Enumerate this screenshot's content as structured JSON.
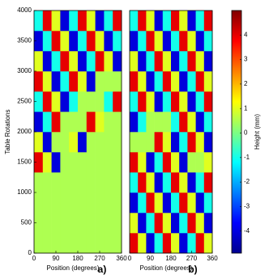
{
  "chart_data": {
    "type": "heatmap",
    "colormap": "jet",
    "ylabel": "Table Rotations",
    "xlim": [
      0,
      360
    ],
    "xticks": [
      0,
      90,
      180,
      270,
      360
    ],
    "ylim": [
      0,
      4000
    ],
    "yticks": [
      0,
      500,
      1000,
      1500,
      2000,
      2500,
      3000,
      3500,
      4000
    ],
    "panels": [
      {
        "label": "a)",
        "xlabel": "Position (degrees)",
        "z": [
          [
            0.5,
            0.5,
            0.5,
            0.5,
            0.5,
            0.5,
            0.5,
            0.5,
            0.5,
            0.5
          ],
          [
            0.5,
            0.5,
            0.5,
            0.5,
            0.5,
            0.5,
            0.5,
            0.5,
            0.5,
            0.5
          ],
          [
            0.5,
            0.5,
            0.5,
            0.5,
            0.5,
            0.5,
            0.5,
            0.5,
            0.5,
            0.5
          ],
          [
            0.5,
            0.5,
            0.5,
            0.5,
            0.5,
            0.5,
            0.5,
            0.5,
            0.5,
            0.5
          ],
          [
            4,
            1,
            -4,
            0.5,
            0.5,
            0.5,
            0.5,
            0.5,
            0.5,
            0.5
          ],
          [
            1,
            -4,
            0.5,
            0.5,
            1,
            -4,
            0.5,
            0.5,
            0.5,
            0.5
          ],
          [
            -4,
            -1,
            4,
            0.5,
            0.5,
            0.5,
            4,
            1,
            0.5,
            0.5
          ],
          [
            -1,
            4,
            1,
            -4,
            -1,
            0.5,
            0.5,
            0.5,
            -1,
            4
          ],
          [
            4,
            1,
            -4,
            -1,
            4,
            1,
            -4,
            0.5,
            0.5,
            0.5
          ],
          [
            1,
            -4,
            -1,
            4,
            1,
            -4,
            -1,
            4,
            1,
            -4
          ],
          [
            -4,
            -1,
            4,
            1,
            -4,
            -1,
            4,
            1,
            -4,
            -1
          ],
          [
            -1,
            4,
            1,
            -4,
            -1,
            4,
            1,
            -4,
            -1,
            4
          ]
        ]
      },
      {
        "label": "b)",
        "xlabel": "Position (degrees)",
        "z": [
          [
            4,
            1,
            -4,
            -1,
            4,
            1,
            -4,
            -1,
            4,
            1
          ],
          [
            1,
            -4,
            -1,
            4,
            1,
            -4,
            -1,
            4,
            1,
            -4
          ],
          [
            -4,
            -1,
            4,
            1,
            -4,
            -1,
            4,
            1,
            -4,
            -1
          ],
          [
            -1,
            4,
            1,
            -4,
            -1,
            4,
            1,
            -4,
            -1,
            4
          ],
          [
            4,
            1,
            -4,
            -1,
            4,
            1,
            -4,
            0.5,
            0.5,
            1
          ],
          [
            0.5,
            0.5,
            0.5,
            4,
            1,
            -4,
            -1,
            4,
            1,
            -4
          ],
          [
            -4,
            -1,
            0.5,
            0.5,
            0.5,
            -1,
            4,
            1,
            -4,
            -1
          ],
          [
            -1,
            4,
            1,
            -4,
            -1,
            4,
            1,
            -4,
            -1,
            4
          ],
          [
            4,
            1,
            -4,
            -1,
            4,
            1,
            -4,
            -1,
            4,
            1
          ],
          [
            1,
            -4,
            -1,
            4,
            1,
            -4,
            -1,
            4,
            1,
            -4
          ],
          [
            -4,
            -1,
            4,
            1,
            -4,
            -1,
            4,
            1,
            -4,
            -1
          ],
          [
            -1,
            4,
            1,
            -4,
            -1,
            4,
            1,
            -4,
            -1,
            4
          ]
        ]
      }
    ],
    "colorbar": {
      "label": "Height (mm)",
      "clim": [
        -4.9,
        5.0
      ],
      "ticks": [
        -4,
        -3,
        -2,
        -1,
        0,
        1,
        2,
        3,
        4
      ]
    }
  }
}
